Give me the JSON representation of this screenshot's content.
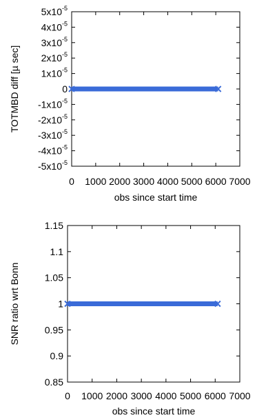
{
  "chart_data": [
    {
      "type": "scatter",
      "xlabel": "obs since start time",
      "ylabel": "TOTMBD diff [µ sec]",
      "xlim": [
        0,
        7000
      ],
      "ylim": [
        -5e-05,
        5e-05
      ],
      "x_ticks": [
        "0",
        "1000",
        "2000",
        "3000",
        "4000",
        "5000",
        "6000",
        "7000"
      ],
      "y_ticks": [
        {
          "mantissa": "5x10",
          "exp": "-5"
        },
        {
          "mantissa": "4x10",
          "exp": "-5"
        },
        {
          "mantissa": "3x10",
          "exp": "-5"
        },
        {
          "mantissa": "2x10",
          "exp": "-5"
        },
        {
          "mantissa": "1x10",
          "exp": "-5"
        },
        {
          "mantissa": "0",
          "exp": ""
        },
        {
          "mantissa": "-1x10",
          "exp": "-5"
        },
        {
          "mantissa": "-2x10",
          "exp": "-5"
        },
        {
          "mantissa": "-3x10",
          "exp": "-5"
        },
        {
          "mantissa": "-4x10",
          "exp": "-5"
        },
        {
          "mantissa": "-5x10",
          "exp": "-5"
        }
      ],
      "series": [
        {
          "x_start": 0,
          "x_end": 6100,
          "y": 0,
          "color": "#3a6bd8"
        }
      ],
      "grid": false
    },
    {
      "type": "scatter",
      "xlabel": "obs since start time",
      "ylabel": "SNR ratio wrt Bonn",
      "xlim": [
        0,
        7000
      ],
      "ylim": [
        0.85,
        1.15
      ],
      "x_ticks": [
        "0",
        "1000",
        "2000",
        "3000",
        "4000",
        "5000",
        "6000",
        "7000"
      ],
      "y_ticks": [
        {
          "mantissa": "1.15",
          "exp": ""
        },
        {
          "mantissa": "1.1",
          "exp": ""
        },
        {
          "mantissa": "1.05",
          "exp": ""
        },
        {
          "mantissa": "1",
          "exp": ""
        },
        {
          "mantissa": "0.95",
          "exp": ""
        },
        {
          "mantissa": "0.9",
          "exp": ""
        },
        {
          "mantissa": "0.85",
          "exp": ""
        }
      ],
      "series": [
        {
          "x_start": 0,
          "x_end": 6100,
          "y": 1,
          "color": "#3a6bd8"
        }
      ],
      "grid": false
    }
  ]
}
